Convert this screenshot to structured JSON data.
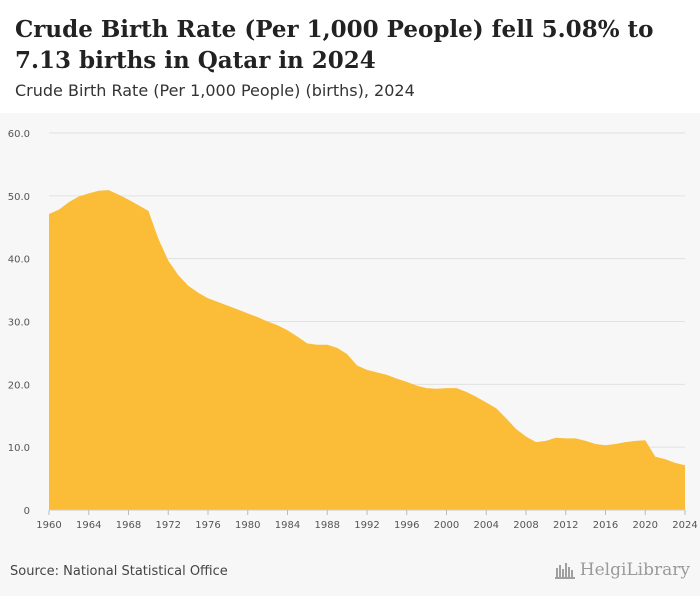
{
  "header": {
    "title": "Crude Birth Rate (Per 1,000 People) fell 5.08% to 7.13 births in Qatar in 2024",
    "subtitle": "Crude Birth Rate (Per 1,000 People) (births), 2024"
  },
  "footer": {
    "source": "Source: National Statistical Office",
    "brand": "HelgiLibrary"
  },
  "colors": {
    "area_fill": "#fbbd37",
    "gridline": "#e2e2e2",
    "header_bg": "#ffffff",
    "page_bg": "#f7f7f7"
  },
  "chart_data": {
    "type": "area",
    "title": "Crude Birth Rate (Per 1,000 People) fell 5.08% to 7.13 births in Qatar in 2024",
    "subtitle": "Crude Birth Rate (Per 1,000 People) (births), 2024",
    "xlabel": "",
    "ylabel": "",
    "grid": true,
    "ylim": [
      0,
      60
    ],
    "xlim": [
      1960,
      2024
    ],
    "y_ticks": [
      "0",
      "10.0",
      "20.0",
      "30.0",
      "40.0",
      "50.0",
      "60.0"
    ],
    "x_ticks": [
      "1960",
      "1964",
      "1968",
      "1972",
      "1976",
      "1980",
      "1984",
      "1988",
      "1992",
      "1996",
      "2000",
      "2004",
      "2008",
      "2012",
      "2016",
      "2020",
      "2024"
    ],
    "x": [
      1960,
      1961,
      1962,
      1963,
      1964,
      1965,
      1966,
      1967,
      1968,
      1969,
      1970,
      1971,
      1972,
      1973,
      1974,
      1975,
      1976,
      1977,
      1978,
      1979,
      1980,
      1981,
      1982,
      1983,
      1984,
      1985,
      1986,
      1987,
      1988,
      1989,
      1990,
      1991,
      1992,
      1993,
      1994,
      1995,
      1996,
      1997,
      1998,
      1999,
      2000,
      2001,
      2002,
      2003,
      2004,
      2005,
      2006,
      2007,
      2008,
      2009,
      2010,
      2011,
      2012,
      2013,
      2014,
      2015,
      2016,
      2017,
      2018,
      2019,
      2020,
      2021,
      2022,
      2023,
      2024
    ],
    "series": [
      {
        "values": [
          47.1,
          47.8,
          49.0,
          49.9,
          50.4,
          50.8,
          50.9,
          50.2,
          49.4,
          48.5,
          47.6,
          43.2,
          39.7,
          37.4,
          35.7,
          34.6,
          33.7,
          33.1,
          32.5,
          31.9,
          31.3,
          30.7,
          30.0,
          29.4,
          28.6,
          27.6,
          26.5,
          26.3,
          26.3,
          25.8,
          24.8,
          23.0,
          22.3,
          21.9,
          21.5,
          20.9,
          20.4,
          19.8,
          19.4,
          19.3,
          19.4,
          19.4,
          18.8,
          18.0,
          17.1,
          16.2,
          14.6,
          12.9,
          11.7,
          10.8,
          11.0,
          11.5,
          11.4,
          11.4,
          11.0,
          10.5,
          10.3,
          10.5,
          10.8,
          11.0,
          11.1,
          8.5,
          8.1,
          7.5,
          7.13
        ]
      }
    ]
  }
}
